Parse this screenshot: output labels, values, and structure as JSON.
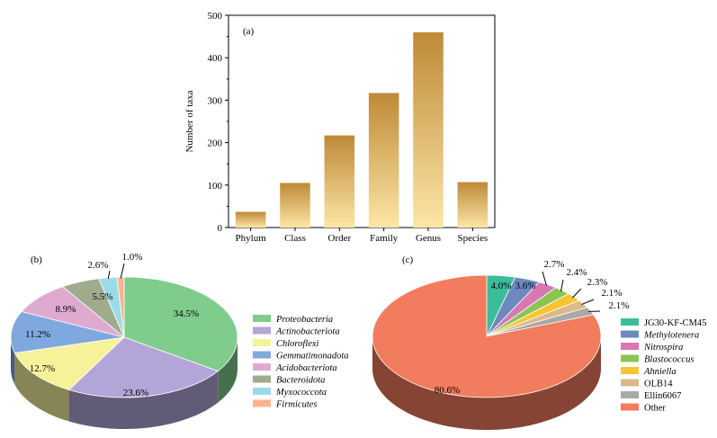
{
  "chart_data": [
    {
      "type": "bar",
      "panel_label": "(a)",
      "ylabel": "Number of taxa",
      "ylim": [
        0,
        500
      ],
      "yticks": [
        0,
        100,
        200,
        300,
        400,
        500
      ],
      "categories": [
        "Phylum",
        "Class",
        "Order",
        "Family",
        "Genus",
        "Species"
      ],
      "values": [
        37,
        105,
        217,
        317,
        460,
        107
      ],
      "bar_color_top": "#bd8a37",
      "bar_color_bottom": "#fde6a6"
    },
    {
      "type": "pie",
      "panel_label": "(b)",
      "slices": [
        {
          "name": "Proteobacteria",
          "value": 34.5,
          "label": "34.5%",
          "color": "#7fcc8c"
        },
        {
          "name": "Actinobacteriota",
          "value": 23.6,
          "label": "23.6%",
          "color": "#b3a5d8"
        },
        {
          "name": "Chloroflexi",
          "value": 12.7,
          "label": "12.7%",
          "color": "#f5f29a"
        },
        {
          "name": "Gemmatimonadota",
          "value": 11.2,
          "label": "11.2%",
          "color": "#7fa9de"
        },
        {
          "name": "Acidobacteriota",
          "value": 8.9,
          "label": "8.9%",
          "color": "#dfaad0"
        },
        {
          "name": "Bacteroidota",
          "value": 5.5,
          "label": "5.5%",
          "color": "#a0aa8d"
        },
        {
          "name": "Myxococcota",
          "value": 2.6,
          "label": "2.6%",
          "color": "#9adbe8"
        },
        {
          "name": "Firmicutes",
          "value": 1.0,
          "label": "1.0%",
          "color": "#f9b491"
        }
      ],
      "legend_italic": true,
      "legend_position": "right"
    },
    {
      "type": "pie",
      "panel_label": "(c)",
      "slices": [
        {
          "name": "JG30-KF-CM45",
          "value": 4.0,
          "label": "4.0%",
          "color": "#3bbd9a",
          "italic": false
        },
        {
          "name": "Methylotenera",
          "value": 3.6,
          "label": "3.6%",
          "color": "#6d89bf",
          "italic": true
        },
        {
          "name": "Nitrospira",
          "value": 2.7,
          "label": "2.7%",
          "color": "#d877b1",
          "italic": true
        },
        {
          "name": "Blastococcus",
          "value": 2.4,
          "label": "2.4%",
          "color": "#8cc453",
          "italic": true
        },
        {
          "name": "Ahniella",
          "value": 2.3,
          "label": "2.3%",
          "color": "#f7c533",
          "italic": true
        },
        {
          "name": "OLB14",
          "value": 2.1,
          "label": "2.1%",
          "color": "#dcb88a",
          "italic": false
        },
        {
          "name": "Ellin6067",
          "value": 2.1,
          "label": "2.1%",
          "color": "#a9a9a9",
          "italic": false
        },
        {
          "name": "Other",
          "value": 80.6,
          "label": "80.6%",
          "color": "#f27c5e",
          "italic": false
        }
      ],
      "legend_position": "right"
    }
  ]
}
